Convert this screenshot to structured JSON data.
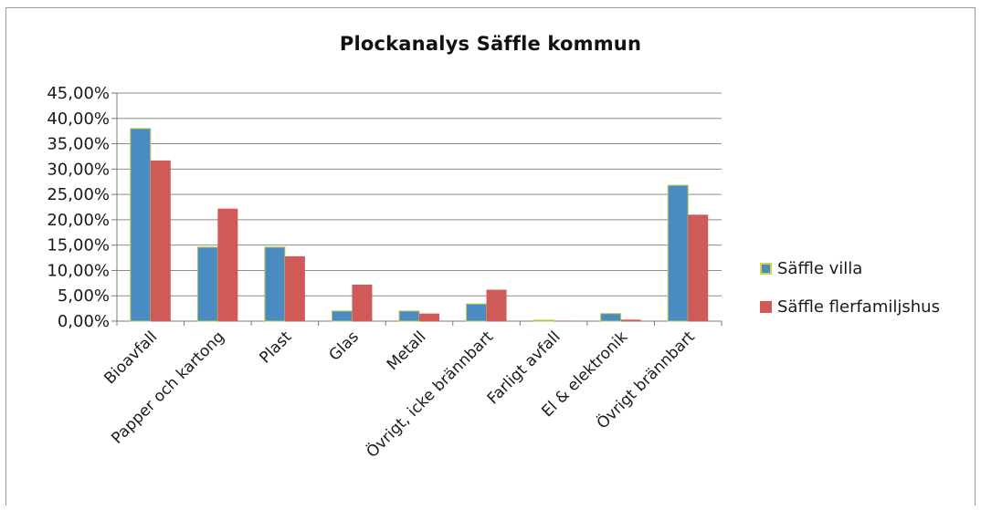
{
  "chart_data": {
    "type": "bar",
    "title": "Plockanalys Säffle kommun",
    "categories": [
      "Bioavfall",
      "Papper och kartong",
      "Plast",
      "Glas",
      "Metall",
      "Övrigt, icke brännbart",
      "Farligt avfall",
      "El & elektronik",
      "Övrigt brännbart"
    ],
    "series": [
      {
        "name": "Säffle villa",
        "color": "#4a8bc4",
        "values": [
          0.38,
          0.146,
          0.146,
          0.02,
          0.02,
          0.034,
          0.002,
          0.015,
          0.268
        ]
      },
      {
        "name": "Säffle flerfamiljshus",
        "color": "#d05a58",
        "values": [
          0.317,
          0.222,
          0.128,
          0.072,
          0.015,
          0.062,
          0.001,
          0.003,
          0.21
        ]
      }
    ],
    "ylim": [
      0,
      0.45
    ],
    "yticks": [
      "0,00%",
      "5,00%",
      "10,00%",
      "15,00%",
      "20,00%",
      "25,00%",
      "30,00%",
      "35,00%",
      "40,00%",
      "45,00%"
    ],
    "xlabel": "",
    "ylabel": "",
    "grid": true,
    "legend": "right"
  }
}
